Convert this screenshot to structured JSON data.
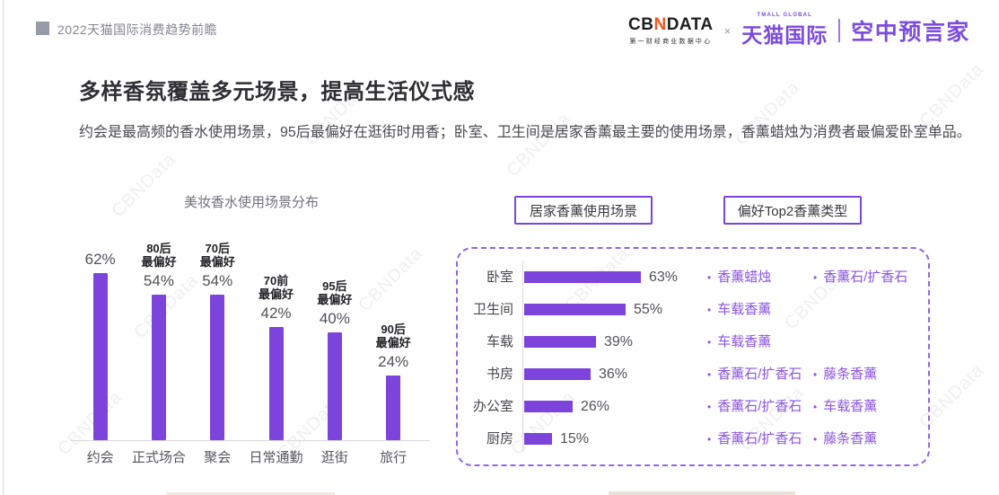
{
  "header": {
    "breadcrumb": "2022天猫国际消费趋势前瞻",
    "logos": {
      "cbndata_cb": "CB",
      "cbndata_n": "N",
      "cbndata_data": "DATA",
      "cbndata_subtitle": "第一财经商业数据中心",
      "cross": "×",
      "tmall_global_small": "TMALL GLOBAL",
      "tmall_global": "天猫国际",
      "air_prophet": "空中预言家"
    }
  },
  "intro": {
    "title": "多样香氛覆盖多元场景，提高生活仪式感",
    "subtitle": "约会是最高频的香水使用场景，95后最偏好在逛街时用香；卧室、卫生间是居家香薰最主要的使用场景，香薰蜡烛为消费者最偏爱卧室单品。"
  },
  "colors": {
    "accent_purple": "#7C44DB",
    "purple_text": "#8A55E2",
    "purple_brand": "#7C4BDF",
    "logo_orange": "#F0571F"
  },
  "watermark_text": "CBNData",
  "chart_data": [
    {
      "type": "bar",
      "title": "美妆香水使用场景分布",
      "categories": [
        "约会",
        "正式场合",
        "聚会",
        "日常通勤",
        "逛街",
        "旅行"
      ],
      "values": [
        62,
        54,
        54,
        42,
        40,
        24
      ],
      "value_labels": [
        "62%",
        "54%",
        "54%",
        "42%",
        "40%",
        "24%"
      ],
      "annotations": [
        {
          "generation": "",
          "suffix": ""
        },
        {
          "generation": "80后",
          "suffix": "最偏好"
        },
        {
          "generation": "70后",
          "suffix": "最偏好"
        },
        {
          "generation": "70前",
          "suffix": "最偏好"
        },
        {
          "generation": "95后",
          "suffix": "最偏好"
        },
        {
          "generation": "90后",
          "suffix": "最偏好"
        }
      ],
      "unit": "%",
      "ylim": [
        0,
        70
      ],
      "grid": false,
      "legend": "none"
    },
    {
      "type": "bar",
      "orientation": "horizontal",
      "title": "居家香薰使用场景",
      "categories": [
        "卧室",
        "卫生间",
        "车载",
        "书房",
        "办公室",
        "厨房"
      ],
      "values": [
        63,
        55,
        39,
        36,
        26,
        15
      ],
      "value_labels": [
        "63%",
        "55%",
        "39%",
        "36%",
        "26%",
        "15%"
      ],
      "unit": "%",
      "xlim": [
        0,
        70
      ],
      "grid": false,
      "legend": "none"
    },
    {
      "type": "table",
      "title": "偏好Top2香薰类型",
      "rows": [
        [
          "香薰蜡烛",
          "香薰石/扩香石"
        ],
        [
          "车载香薰"
        ],
        [
          "车载香薰"
        ],
        [
          "香薰石/扩香石",
          "藤条香薰"
        ],
        [
          "香薰石/扩香石",
          "车载香薰"
        ],
        [
          "香薰石/扩香石",
          "藤条香薰"
        ]
      ]
    }
  ]
}
